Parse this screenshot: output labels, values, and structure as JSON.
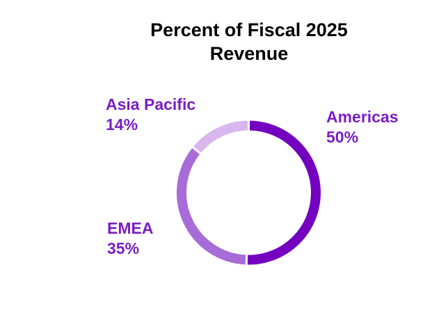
{
  "chart_data": {
    "type": "pie",
    "variant": "donut",
    "title_lines": [
      "Percent of Fiscal 2025",
      "Revenue"
    ],
    "slices": [
      {
        "label": "Americas",
        "value": 50,
        "value_label": "50%",
        "color": "#7400c0"
      },
      {
        "label": "EMEA",
        "value": 35,
        "value_label": "35%",
        "color": "#a86cd8"
      },
      {
        "label": "Asia Pacific",
        "value": 14,
        "value_label": "14%",
        "color": "#d9b6ee"
      }
    ],
    "label_color": "#7a1ec4"
  }
}
